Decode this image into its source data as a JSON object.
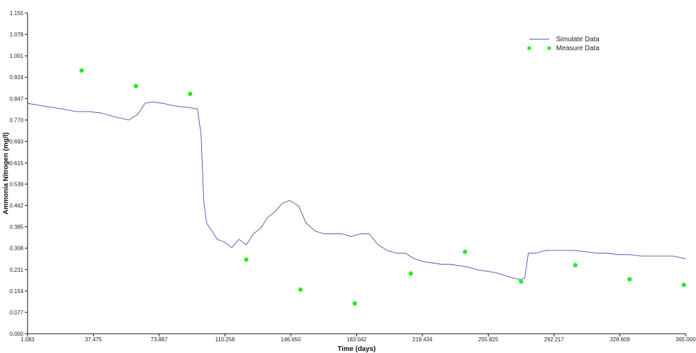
{
  "chart_data": {
    "type": "line",
    "xlabel": "Time (days)",
    "ylabel": "Ammonia Nitrogen (mg/l)",
    "xlim": [
      1.083,
      365.0
    ],
    "ylim": [
      0.0,
      1.155
    ],
    "x_ticks": [
      "1.083",
      "37.475",
      "73.867",
      "110.258",
      "146.650",
      "183.042",
      "219.434",
      "255.825",
      "292.217",
      "328.609",
      "365.000"
    ],
    "y_ticks": [
      "0.000",
      "0.077",
      "0.154",
      "0.231",
      "0.308",
      "0.385",
      "0.462",
      "0.539",
      "0.615",
      "0.693",
      "0.770",
      "0.847",
      "0.924",
      "1.001",
      "1.078",
      "1.155"
    ],
    "grid": false,
    "legend_position": "top-right",
    "colors": {
      "simulated": "#4a4aa8",
      "measured": "#22ee22"
    },
    "series": [
      {
        "name": "Simulate Data",
        "style": "line",
        "points": [
          [
            1.083,
            0.83
          ],
          [
            10,
            0.82
          ],
          [
            20,
            0.81
          ],
          [
            28,
            0.8
          ],
          [
            35,
            0.8
          ],
          [
            42,
            0.795
          ],
          [
            50,
            0.78
          ],
          [
            57,
            0.77
          ],
          [
            62,
            0.79
          ],
          [
            66,
            0.83
          ],
          [
            70,
            0.835
          ],
          [
            76,
            0.83
          ],
          [
            83,
            0.82
          ],
          [
            90,
            0.815
          ],
          [
            95,
            0.81
          ],
          [
            97,
            0.72
          ],
          [
            98.5,
            0.48
          ],
          [
            100,
            0.4
          ],
          [
            103,
            0.37
          ],
          [
            106,
            0.34
          ],
          [
            110,
            0.33
          ],
          [
            114,
            0.31
          ],
          [
            118,
            0.34
          ],
          [
            122,
            0.32
          ],
          [
            126,
            0.36
          ],
          [
            130,
            0.38
          ],
          [
            134,
            0.42
          ],
          [
            138,
            0.44
          ],
          [
            142,
            0.47
          ],
          [
            146,
            0.48
          ],
          [
            151,
            0.46
          ],
          [
            155,
            0.4
          ],
          [
            160,
            0.37
          ],
          [
            165,
            0.36
          ],
          [
            170,
            0.36
          ],
          [
            175,
            0.36
          ],
          [
            180,
            0.35
          ],
          [
            185,
            0.36
          ],
          [
            190,
            0.36
          ],
          [
            195,
            0.32
          ],
          [
            200,
            0.3
          ],
          [
            205,
            0.29
          ],
          [
            210,
            0.29
          ],
          [
            215,
            0.27
          ],
          [
            220,
            0.26
          ],
          [
            225,
            0.255
          ],
          [
            230,
            0.25
          ],
          [
            235,
            0.25
          ],
          [
            240,
            0.245
          ],
          [
            245,
            0.24
          ],
          [
            250,
            0.23
          ],
          [
            255,
            0.225
          ],
          [
            260,
            0.22
          ],
          [
            265,
            0.21
          ],
          [
            270,
            0.2
          ],
          [
            274,
            0.195
          ],
          [
            276,
            0.2
          ],
          [
            278,
            0.29
          ],
          [
            282,
            0.29
          ],
          [
            288,
            0.3
          ],
          [
            292,
            0.3
          ],
          [
            297,
            0.3
          ],
          [
            303,
            0.3
          ],
          [
            310,
            0.295
          ],
          [
            316,
            0.29
          ],
          [
            322,
            0.29
          ],
          [
            328,
            0.285
          ],
          [
            334,
            0.285
          ],
          [
            340,
            0.28
          ],
          [
            346,
            0.28
          ],
          [
            352,
            0.28
          ],
          [
            358,
            0.28
          ],
          [
            365.0,
            0.27
          ]
        ]
      },
      {
        "name": "Measure Data",
        "style": "scatter",
        "points": [
          [
            31,
            0.948
          ],
          [
            61,
            0.892
          ],
          [
            91,
            0.864
          ],
          [
            122,
            0.267
          ],
          [
            152,
            0.159
          ],
          [
            182,
            0.109
          ],
          [
            213,
            0.217
          ],
          [
            243,
            0.295
          ],
          [
            274,
            0.188
          ],
          [
            304,
            0.247
          ],
          [
            334,
            0.196
          ],
          [
            364,
            0.176
          ]
        ]
      }
    ]
  }
}
